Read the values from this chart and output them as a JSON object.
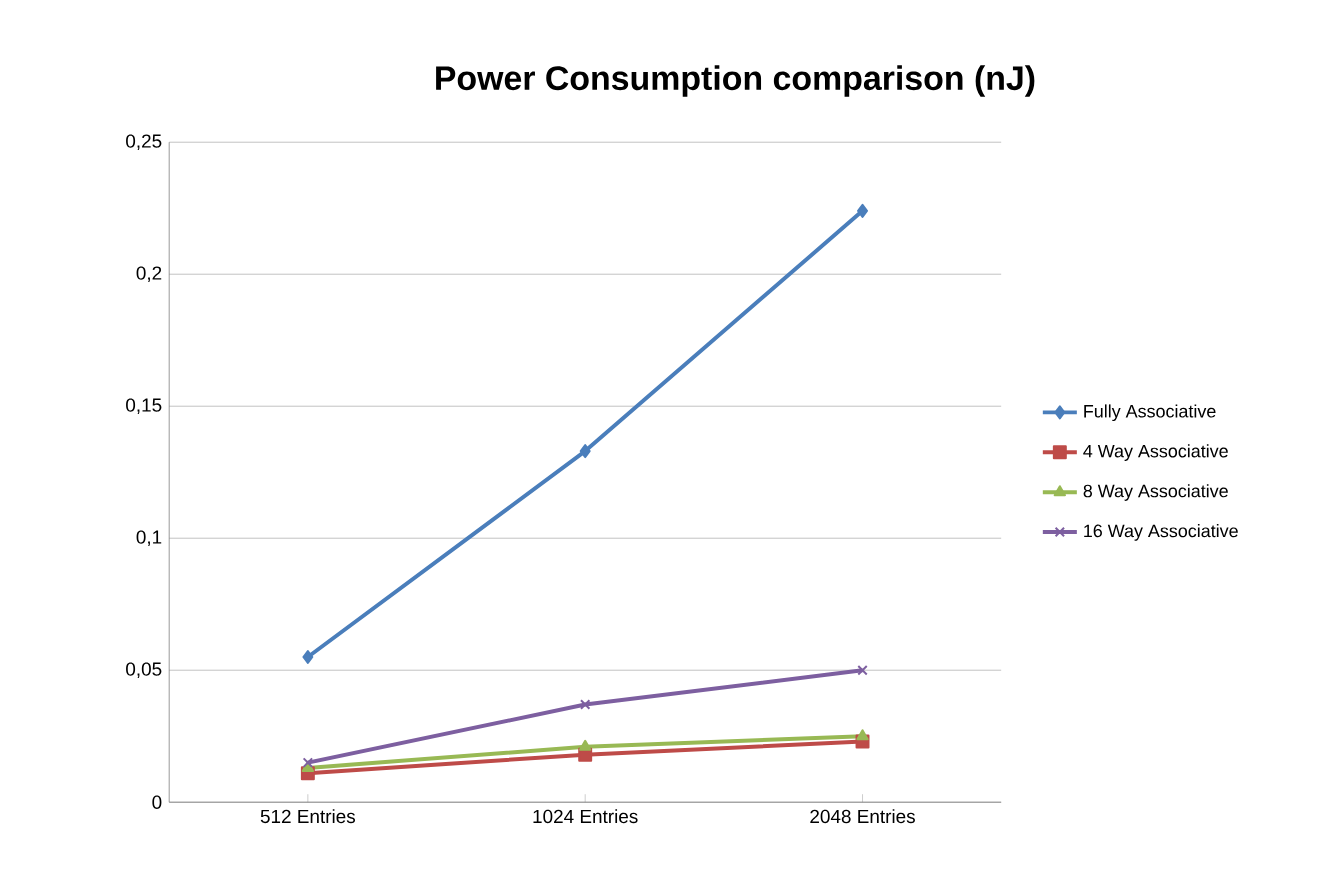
{
  "chart_data": {
    "type": "line",
    "title": "Power Consumption comparison (nJ)",
    "categories": [
      "512 Entries",
      "1024 Entries",
      "2048 Entries"
    ],
    "series": [
      {
        "name": "Fully Associative",
        "color": "#4a7ebb",
        "marker": "diamond",
        "values": [
          0.055,
          0.133,
          0.224
        ]
      },
      {
        "name": "4 Way Associative",
        "color": "#be4b48",
        "marker": "square",
        "values": [
          0.011,
          0.018,
          0.023
        ]
      },
      {
        "name": "8 Way Associative",
        "color": "#98b954",
        "marker": "triangle",
        "values": [
          0.013,
          0.021,
          0.025
        ]
      },
      {
        "name": "16 Way Associative",
        "color": "#7d5fa0",
        "marker": "cross",
        "values": [
          0.015,
          0.037,
          0.05
        ]
      }
    ],
    "ylim": [
      0,
      0.25
    ],
    "yticks": [
      0,
      {
        "value": 0.05,
        "label": "0,05"
      },
      {
        "value": 0.1,
        "label": "0,1"
      },
      {
        "value": 0.15,
        "label": "0,15"
      },
      {
        "value": 0.2,
        "label": "0,2"
      },
      {
        "value": 0.25,
        "label": "0,25"
      }
    ],
    "grid": "y",
    "legend": "right",
    "line_style": "solid"
  }
}
